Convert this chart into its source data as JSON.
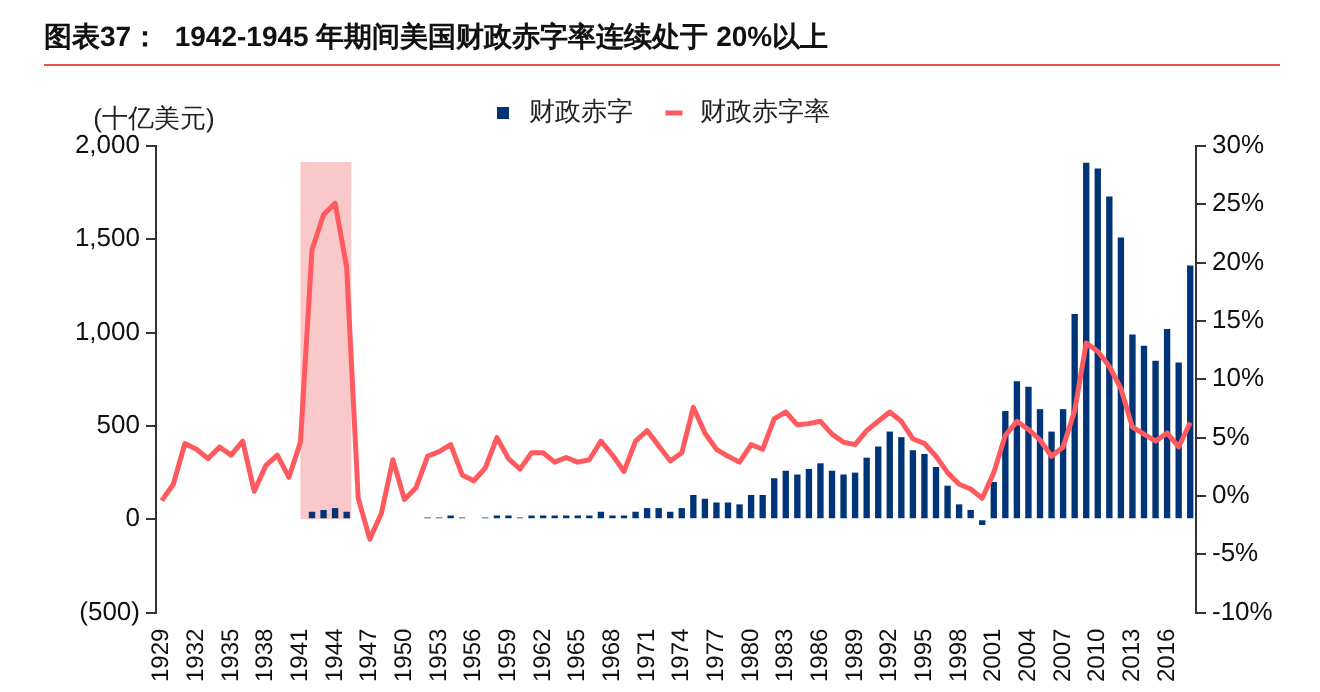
{
  "chart_data": {
    "type": "bar",
    "title": "图表37：  1942-1945 年期间美国财政赤字率连续处于 20%以上",
    "ylabel": "(十亿美元)",
    "x": [
      1929,
      1930,
      1931,
      1932,
      1933,
      1934,
      1935,
      1936,
      1937,
      1938,
      1939,
      1940,
      1941,
      1942,
      1943,
      1944,
      1945,
      1946,
      1947,
      1948,
      1949,
      1950,
      1951,
      1952,
      1953,
      1954,
      1955,
      1956,
      1957,
      1958,
      1959,
      1960,
      1961,
      1962,
      1963,
      1964,
      1965,
      1966,
      1967,
      1968,
      1969,
      1970,
      1971,
      1972,
      1973,
      1974,
      1975,
      1976,
      1977,
      1978,
      1979,
      1980,
      1981,
      1982,
      1983,
      1984,
      1985,
      1986,
      1987,
      1988,
      1989,
      1990,
      1991,
      1992,
      1993,
      1994,
      1995,
      1996,
      1997,
      1998,
      1999,
      2000,
      2001,
      2002,
      2003,
      2004,
      2005,
      2006,
      2007,
      2008,
      2009,
      2010,
      2011,
      2012,
      2013,
      2014,
      2015,
      2016,
      2017,
      2018
    ],
    "series": [
      {
        "name": "财政赤字",
        "color": "#003478",
        "values": [
          0,
          0,
          0,
          0,
          0,
          0,
          0,
          0,
          0,
          0,
          0,
          0,
          0,
          40,
          50,
          60,
          40,
          0,
          0,
          0,
          0,
          0,
          0,
          10,
          10,
          20,
          10,
          0,
          10,
          20,
          20,
          10,
          20,
          20,
          20,
          20,
          20,
          20,
          40,
          20,
          20,
          40,
          60,
          60,
          40,
          60,
          130,
          110,
          90,
          90,
          80,
          130,
          130,
          220,
          260,
          240,
          270,
          300,
          260,
          240,
          250,
          330,
          390,
          470,
          440,
          370,
          350,
          280,
          180,
          80,
          50,
          -30,
          200,
          580,
          740,
          710,
          590,
          470,
          590,
          1100,
          1910,
          1880,
          1730,
          1510,
          990,
          930,
          850,
          1020,
          840,
          1360
        ]
      },
      {
        "name": "财政赤字率",
        "type": "line",
        "axis": "y2",
        "color": "#ff5a5f",
        "values": [
          -0.4,
          1.0,
          4.5,
          4.0,
          3.2,
          4.2,
          3.5,
          4.7,
          0.4,
          2.6,
          3.5,
          1.6,
          4.6,
          21.1,
          24.1,
          25.1,
          19.6,
          -0.2,
          -3.7,
          -1.5,
          3.1,
          -0.3,
          0.7,
          3.4,
          3.8,
          4.4,
          1.8,
          1.3,
          2.4,
          5.0,
          3.2,
          2.3,
          3.7,
          3.7,
          2.9,
          3.3,
          2.9,
          3.1,
          4.7,
          3.5,
          2.1,
          4.7,
          5.6,
          4.3,
          3.0,
          3.7,
          7.6,
          5.4,
          4.0,
          3.4,
          2.9,
          4.4,
          4.0,
          6.6,
          7.2,
          6.1,
          6.2,
          6.4,
          5.3,
          4.6,
          4.4,
          5.6,
          6.4,
          7.2,
          6.4,
          4.9,
          4.5,
          3.4,
          2.0,
          1.0,
          0.6,
          -0.2,
          2.0,
          5.2,
          6.4,
          5.7,
          4.8,
          3.4,
          4.2,
          7.3,
          13.1,
          12.4,
          11.1,
          9.2,
          5.9,
          5.3,
          4.7,
          5.4,
          4.2,
          6.3
        ]
      }
    ],
    "xlim": [
      1928.5,
      2018.5
    ],
    "xticks": [
      1929,
      1932,
      1935,
      1938,
      1941,
      1944,
      1947,
      1950,
      1953,
      1956,
      1959,
      1962,
      1965,
      1968,
      1971,
      1974,
      1977,
      1980,
      1983,
      1986,
      1989,
      1992,
      1995,
      1998,
      2001,
      2004,
      2007,
      2010,
      2013,
      2016
    ],
    "ylim": [
      -500,
      2000
    ],
    "yticks": [
      {
        "value": -500,
        "label": "(500)"
      },
      0,
      {
        "value": 500,
        "label": "500"
      },
      {
        "value": 1000,
        "label": "1,000"
      },
      {
        "value": 1500,
        "label": "1,500"
      },
      {
        "value": 2000,
        "label": "2,000"
      }
    ],
    "y2lim": [
      -10,
      30
    ],
    "y2ticks": [
      {
        "value": -10,
        "label": "-10%"
      },
      {
        "value": -5,
        "label": "-5%"
      },
      {
        "value": 0,
        "label": "0%"
      },
      {
        "value": 5,
        "label": "5%"
      },
      {
        "value": 10,
        "label": "10%"
      },
      {
        "value": 15,
        "label": "15%"
      },
      {
        "value": 20,
        "label": "20%"
      },
      {
        "value": 25,
        "label": "25%"
      },
      {
        "value": 30,
        "label": "30%"
      }
    ],
    "bands": [
      {
        "axis": "x",
        "from": 1941,
        "to": 1945.4,
        "color": "#f9c8c8"
      }
    ],
    "legend": "top",
    "grid": false,
    "marker": "none",
    "line_style": "solid"
  }
}
